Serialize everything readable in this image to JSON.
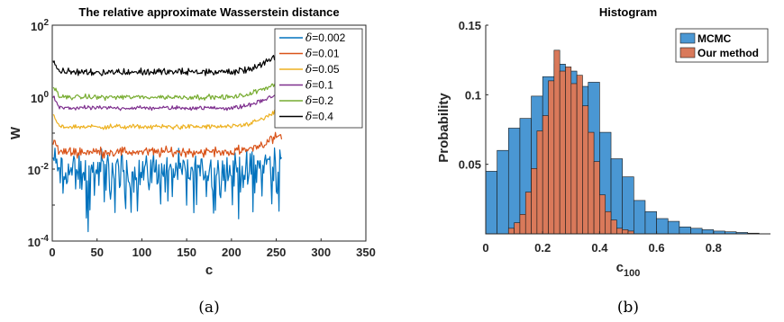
{
  "chart_data": [
    {
      "type": "line",
      "title": "The relative approximate Wasserstein distance",
      "xlabel": "c",
      "ylabel": "W",
      "yscale": "log",
      "xlim": [
        0,
        350
      ],
      "ylim": [
        0.0001,
        100
      ],
      "xticks": [
        0,
        50,
        100,
        150,
        200,
        250,
        300,
        350
      ],
      "xtick_labels": [
        "0",
        "50",
        "100",
        "150",
        "200",
        "250",
        "300",
        "350"
      ],
      "ytick_labels": [
        {
          "value": 0.0001,
          "base": "10",
          "exp": "-4"
        },
        {
          "value": 0.01,
          "base": "10",
          "exp": "-2"
        },
        {
          "value": 1,
          "base": "10",
          "exp": "0"
        },
        {
          "value": 100,
          "base": "10",
          "exp": "2"
        }
      ],
      "legend_position": "top-right",
      "x_range": [
        1,
        256
      ],
      "series": [
        {
          "name": "δ=0.002",
          "symbol": "δ",
          "value_text": "=0.002",
          "color": "#0072BD",
          "typical": 0.009,
          "noise_log10": 0.62,
          "dip_prob": 0.16,
          "end_value": 0.02
        },
        {
          "name": "δ=0.01",
          "symbol": "δ",
          "value_text": "=0.01",
          "color": "#D95319",
          "typical": 0.03,
          "noise_log10": 0.16,
          "dip_prob": 0.0,
          "end_value": 0.09
        },
        {
          "name": "δ=0.05",
          "symbol": "δ",
          "value_text": "=0.05",
          "color": "#EDB120",
          "typical": 0.15,
          "noise_log10": 0.08,
          "dip_prob": 0.0,
          "end_value": 0.45
        },
        {
          "name": "δ=0.1",
          "symbol": "δ",
          "value_text": "=0.1",
          "color": "#7E2F8E",
          "typical": 0.5,
          "noise_log10": 0.07,
          "dip_prob": 0.0,
          "end_value": 1.4
        },
        {
          "name": "δ=0.2",
          "symbol": "δ",
          "value_text": "=0.2",
          "color": "#77AC30",
          "typical": 1.0,
          "noise_log10": 0.08,
          "dip_prob": 0.0,
          "end_value": 3.0
        },
        {
          "name": "δ=0.4",
          "symbol": "δ",
          "value_text": "=0.4",
          "color": "#000000",
          "typical": 5.0,
          "noise_log10": 0.12,
          "dip_prob": 0.0,
          "end_value": 15.0
        }
      ]
    },
    {
      "type": "bar",
      "title": "Histogram",
      "xlabel": "c",
      "xlabel_sub": "100",
      "ylabel": "Probability",
      "xlim": [
        0,
        1
      ],
      "ylim": [
        0,
        0.15
      ],
      "xticks": [
        0,
        0.2,
        0.4,
        0.6,
        0.8
      ],
      "xtick_labels": [
        "0",
        "0.2",
        "0.4",
        "0.6",
        "0.8"
      ],
      "yticks": [
        0.05,
        0.1,
        0.15
      ],
      "ytick_labels": [
        "0.05",
        "0.1",
        "0.15"
      ],
      "legend_position": "top-right",
      "series": [
        {
          "name": "MCMC",
          "color": "#4A97D3",
          "bin_width": 0.04,
          "bin_starts": [
            0.0,
            0.04,
            0.08,
            0.12,
            0.16,
            0.2,
            0.24,
            0.28,
            0.32,
            0.36,
            0.4,
            0.44,
            0.48,
            0.52,
            0.56,
            0.6,
            0.64,
            0.68,
            0.72,
            0.76,
            0.8,
            0.84,
            0.88,
            0.92
          ],
          "values": [
            0.045,
            0.06,
            0.076,
            0.083,
            0.099,
            0.113,
            0.122,
            0.117,
            0.106,
            0.109,
            0.073,
            0.054,
            0.041,
            0.024,
            0.016,
            0.011,
            0.009,
            0.005,
            0.004,
            0.003,
            0.002,
            0.0015,
            0.001,
            0.0005
          ]
        },
        {
          "name": "Our method",
          "color": "#D9795A",
          "bin_width": 0.02,
          "bin_starts": [
            0.08,
            0.1,
            0.12,
            0.14,
            0.16,
            0.18,
            0.2,
            0.22,
            0.24,
            0.26,
            0.28,
            0.3,
            0.32,
            0.34,
            0.36,
            0.38,
            0.4,
            0.42,
            0.44,
            0.46,
            0.48,
            0.5
          ],
          "values": [
            0.004,
            0.008,
            0.014,
            0.03,
            0.047,
            0.074,
            0.085,
            0.11,
            0.132,
            0.117,
            0.12,
            0.108,
            0.114,
            0.092,
            0.073,
            0.052,
            0.028,
            0.016,
            0.01,
            0.004,
            0.003,
            0.002
          ]
        }
      ]
    }
  ],
  "captions": [
    "(a)",
    "(b)"
  ]
}
